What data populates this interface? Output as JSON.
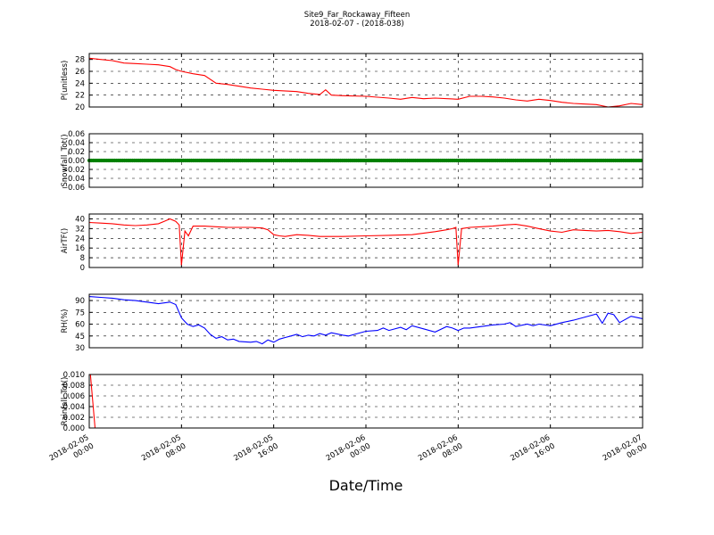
{
  "figure": {
    "title": "Site9_Far_Rockaway_Fifteen",
    "subtitle": "2018-02-07 - (2018-038)",
    "xlabel": "Date/Time",
    "x_ticks": [
      {
        "line1": "2018-02-05",
        "line2": "00:00"
      },
      {
        "line1": "2018-02-05",
        "line2": "08:00"
      },
      {
        "line1": "2018-02-05",
        "line2": "16:00"
      },
      {
        "line1": "2018-02-06",
        "line2": "00:00"
      },
      {
        "line1": "2018-02-06",
        "line2": "08:00"
      },
      {
        "line1": "2018-02-06",
        "line2": "16:00"
      },
      {
        "line1": "2018-02-07",
        "line2": "00:00"
      }
    ]
  },
  "chart_data": [
    {
      "type": "line",
      "ylabel": "P(unitless)",
      "color": "#ff0000",
      "ylim": [
        20,
        29
      ],
      "yticks": [
        "20",
        "22",
        "24",
        "26",
        "28"
      ],
      "ytick_values": [
        20,
        22,
        24,
        26,
        28
      ],
      "xlim_hours": [
        0,
        48
      ],
      "x_hours": [
        0,
        1,
        2,
        3,
        4,
        5,
        6,
        7,
        7.5,
        8,
        9,
        10,
        11,
        12,
        13,
        14,
        15,
        16,
        18,
        19,
        20,
        20.5,
        21,
        22,
        24,
        26,
        27,
        28,
        29,
        30,
        32,
        33,
        34,
        35,
        36,
        37,
        38,
        39,
        40,
        41,
        42,
        43,
        44,
        45,
        46,
        47,
        48
      ],
      "values": [
        28.2,
        28.0,
        27.8,
        27.4,
        27.3,
        27.2,
        27.1,
        26.8,
        26.3,
        26.0,
        25.6,
        25.3,
        24.0,
        23.8,
        23.5,
        23.2,
        23.0,
        22.8,
        22.6,
        22.3,
        22.1,
        22.9,
        22.0,
        21.9,
        21.8,
        21.5,
        21.3,
        21.6,
        21.4,
        21.5,
        21.3,
        21.8,
        21.8,
        21.7,
        21.5,
        21.2,
        21.0,
        21.3,
        21.1,
        20.8,
        20.6,
        20.5,
        20.4,
        20.0,
        20.2,
        20.6,
        20.4
      ]
    },
    {
      "type": "scatter",
      "ylabel": "Snowfall_Tot()",
      "color": "#008000",
      "ylim": [
        -0.06,
        0.06
      ],
      "yticks": [
        "−0.06",
        "−0.04",
        "−0.02",
        "0.00",
        "0.02",
        "0.04",
        "0.06"
      ],
      "ytick_values": [
        -0.06,
        -0.04,
        -0.02,
        0,
        0.02,
        0.04,
        0.06
      ],
      "xlim_hours": [
        0,
        48
      ],
      "x_hours": [
        0,
        48
      ],
      "values": [
        0,
        0
      ],
      "dense_marker": true
    },
    {
      "type": "line",
      "ylabel": "AirTF()",
      "color": "#ff0000",
      "ylim": [
        0,
        44
      ],
      "yticks": [
        "0",
        "8",
        "16",
        "24",
        "32",
        "40"
      ],
      "ytick_values": [
        0,
        8,
        16,
        24,
        32,
        40
      ],
      "xlim_hours": [
        0,
        48
      ],
      "x_hours": [
        0,
        1,
        2,
        3,
        4,
        5,
        6,
        6.5,
        7,
        7.5,
        7.8,
        8,
        8.3,
        8.6,
        9,
        10,
        11,
        12,
        13,
        14,
        15,
        15.5,
        16,
        16.5,
        17,
        18,
        19,
        20,
        22,
        24,
        26,
        28,
        30,
        31,
        31.5,
        31.8,
        32,
        32.3,
        33,
        34,
        35,
        36,
        37,
        38,
        39,
        40,
        41,
        42,
        43,
        44,
        45,
        46,
        47,
        48
      ],
      "values": [
        37,
        36.5,
        36,
        35,
        34.5,
        35,
        36,
        38,
        40,
        38,
        35,
        2,
        30,
        26,
        34,
        34,
        33.5,
        33,
        33,
        33,
        32.5,
        31,
        27,
        26,
        25.5,
        27,
        26.5,
        25.5,
        25.5,
        26,
        26.5,
        27,
        29.5,
        31,
        32,
        33,
        2,
        32,
        33,
        33.5,
        34,
        35,
        35.5,
        34,
        32,
        30,
        29,
        31,
        30.5,
        30,
        30.5,
        29.5,
        28,
        29
      ]
    },
    {
      "type": "line",
      "ylabel": "RH(%)",
      "color": "#0000ff",
      "ylim": [
        30,
        98
      ],
      "yticks": [
        "30",
        "45",
        "60",
        "75",
        "90"
      ],
      "ytick_values": [
        30,
        45,
        60,
        75,
        90
      ],
      "xlim_hours": [
        0,
        48
      ],
      "x_hours": [
        0,
        1,
        2,
        3,
        4,
        5,
        6,
        7,
        7.5,
        8,
        8.5,
        9,
        9.5,
        10,
        10.5,
        11,
        11.5,
        12,
        12.5,
        13,
        14,
        14.5,
        15,
        15.5,
        16,
        16.5,
        17,
        17.5,
        18,
        18.5,
        19,
        19.5,
        20,
        20.5,
        21,
        22,
        22.5,
        23,
        24,
        25,
        25.5,
        26,
        27,
        27.5,
        28,
        29,
        30,
        31,
        31.5,
        32,
        32.5,
        33,
        34,
        35,
        36,
        36.5,
        37,
        38,
        38.5,
        39,
        40,
        41,
        42,
        43,
        44,
        44.5,
        45,
        45.5,
        46,
        47,
        48
      ],
      "values": [
        95,
        94,
        93,
        91,
        90,
        88,
        86,
        88,
        85,
        68,
        60,
        57,
        59,
        55,
        47,
        42,
        44,
        40,
        41,
        38,
        37,
        38,
        35,
        40,
        37,
        41,
        43,
        45,
        47,
        44,
        46,
        45,
        48,
        46,
        49,
        46,
        45,
        47,
        51,
        52,
        55,
        52,
        56,
        53,
        58,
        54,
        50,
        57,
        55,
        52,
        55,
        55,
        57,
        59,
        60,
        62,
        57,
        60,
        58,
        60,
        58,
        62,
        65,
        69,
        73,
        61,
        74,
        72,
        62,
        70,
        67
      ]
    },
    {
      "type": "line",
      "ylabel": "Rainfall_Tot()",
      "color": "#ff0000",
      "ylim": [
        0,
        0.01
      ],
      "yticks": [
        "0.000",
        "0.002",
        "0.004",
        "0.006",
        "0.008",
        "0.010"
      ],
      "ytick_values": [
        0,
        0.002,
        0.004,
        0.006,
        0.008,
        0.01
      ],
      "xlim_hours": [
        0,
        48
      ],
      "x_hours": [
        0,
        0.1,
        0.5,
        48
      ],
      "values": [
        0.01,
        0.01,
        0,
        0
      ]
    }
  ]
}
